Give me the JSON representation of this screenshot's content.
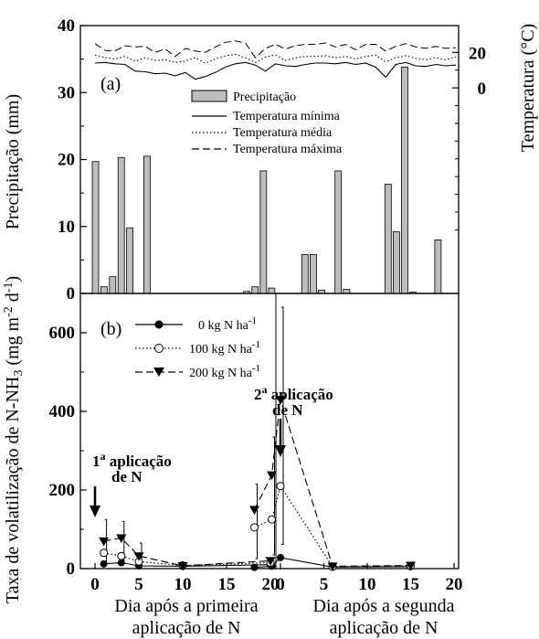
{
  "chart_data": [
    {
      "type": "bar",
      "panel_label": "(a)",
      "ylabel": "Precipitação (mm)",
      "ylim": [
        0,
        40
      ],
      "yticks": [
        "0",
        "10",
        "20",
        "30",
        "40"
      ],
      "y2label": "Temperatura (°C)",
      "y2ticks": [
        "0",
        "20"
      ],
      "legend": [
        "Precipitação",
        "Temperatura mínima",
        "Temperatura média",
        "Temperatura máxima"
      ],
      "bars_first_application": [
        {
          "day": 0,
          "mm": 19.7
        },
        {
          "day": 1,
          "mm": 1.0
        },
        {
          "day": 2,
          "mm": 2.5
        },
        {
          "day": 3,
          "mm": 20.3
        },
        {
          "day": 4,
          "mm": 9.8
        },
        {
          "day": 6,
          "mm": 20.5
        }
      ],
      "bars_second_application": [
        {
          "day": -4,
          "mm": 0.3
        },
        {
          "day": -3,
          "mm": 1.0
        },
        {
          "day": -2,
          "mm": 18.3
        },
        {
          "day": -1,
          "mm": 0.8
        },
        {
          "day": 3,
          "mm": 5.8
        },
        {
          "day": 4,
          "mm": 5.8
        },
        {
          "day": 5,
          "mm": 0.5
        },
        {
          "day": 7,
          "mm": 18.3
        },
        {
          "day": 8,
          "mm": 0.6
        },
        {
          "day": 13,
          "mm": 16.3
        },
        {
          "day": 14,
          "mm": 9.2
        },
        {
          "day": 15,
          "mm": 33.8
        },
        {
          "day": 16,
          "mm": 0.2
        },
        {
          "day": 19,
          "mm": 8.0
        }
      ],
      "temperature_lines": {
        "minima_mm_scale": [
          34.4,
          34.5,
          34.3,
          34.2,
          33.2,
          33.1,
          32.8,
          32.9,
          32.5,
          33.0,
          32.0,
          32.4,
          33.0,
          33.8,
          34.3,
          34.5,
          34.1,
          33.2,
          34.3,
          34.0,
          33.9,
          34.2,
          34.4,
          34.4,
          34.3,
          34.5,
          34.2,
          34.4,
          33.8,
          32.3,
          34.2,
          34.5,
          34.0,
          33.9,
          34.2,
          34.0,
          34.1
        ],
        "media_mm_scale": [
          35.6,
          35.2,
          35.0,
          35.4,
          34.7,
          35.2,
          34.8,
          34.9,
          34.5,
          34.7,
          35.2,
          34.4,
          35.0,
          35.5,
          35.7,
          35.2,
          34.5,
          35.3,
          35.6,
          34.8,
          35.2,
          35.4,
          35.4,
          35.5,
          35.2,
          35.4,
          35.0,
          35.4,
          35.6,
          34.6,
          35.2,
          35.5,
          35.1,
          34.9,
          35.2,
          34.9,
          35.3
        ],
        "maxima_mm_scale": [
          37.3,
          36.3,
          36.2,
          37.0,
          36.8,
          36.9,
          36.0,
          36.5,
          35.4,
          36.6,
          36.2,
          36.0,
          36.8,
          37.5,
          37.7,
          37.4,
          35.2,
          36.6,
          37.2,
          36.5,
          37.0,
          37.2,
          37.2,
          37.4,
          36.8,
          37.2,
          36.4,
          37.2,
          37.2,
          36.2,
          36.9,
          37.3,
          36.8,
          36.6,
          36.9,
          36.6,
          36.7
        ]
      }
    },
    {
      "type": "line",
      "panel_label": "(b)",
      "ylabel": "Taxa de volatilização de N-NH",
      "ylabel_sub": "3",
      "ylabel_units": " (mg m",
      "ylabel_units_sup1": "-2",
      "ylabel_units_mid": " d",
      "ylabel_units_sup2": "-1",
      "ylabel_units_end": ")",
      "ylim": [
        0,
        700
      ],
      "yticks": [
        "0",
        "200",
        "400",
        "600"
      ],
      "xticks_first": [
        "0",
        "5",
        "10",
        "15",
        "20"
      ],
      "xticks_second": [
        "0",
        "5",
        "10",
        "15",
        "20"
      ],
      "xlabel_first": [
        "Dia após a primeira",
        "aplicação de N"
      ],
      "xlabel_second": [
        "Dia após a segunda",
        "aplicação de N"
      ],
      "annotation_first": [
        "1",
        "a",
        " aplicação",
        "de N"
      ],
      "annotation_second": [
        "2",
        "a",
        " aplicação",
        "de N"
      ],
      "series": [
        {
          "name": "0 kg N ha",
          "sup": "-1",
          "marker": "filled-circle",
          "line": "solid",
          "first": [
            [
              1,
              12
            ],
            [
              3,
              15
            ],
            [
              5,
              7
            ],
            [
              10,
              6
            ],
            [
              20,
              10
            ]
          ],
          "second": [
            [
              -3,
              3
            ],
            [
              -1,
              6
            ],
            [
              0,
              28
            ],
            [
              6,
              4
            ],
            [
              15,
              5
            ]
          ]
        },
        {
          "name": "100 kg N ha",
          "sup": "-1",
          "marker": "open-circle",
          "line": "dotted",
          "first": [
            [
              1,
              40
            ],
            [
              3,
              32
            ],
            [
              5,
              18
            ],
            [
              10,
              8
            ],
            [
              20,
              15
            ]
          ],
          "second": [
            [
              -3,
              105
            ],
            [
              -1,
              125
            ],
            [
              0,
              210
            ],
            [
              6,
              5
            ],
            [
              15,
              7
            ]
          ]
        },
        {
          "name": "200 kg N ha",
          "sup": "-1",
          "marker": "filled-triangle-down",
          "line": "dashed",
          "first": [
            [
              1,
              70
            ],
            [
              3,
              78
            ],
            [
              5,
              32
            ],
            [
              10,
              7
            ],
            [
              20,
              20
            ]
          ],
          "second": [
            [
              -3,
              150
            ],
            [
              -1,
              238
            ],
            [
              0,
              430
            ],
            [
              6,
              6
            ],
            [
              15,
              8
            ]
          ]
        }
      ]
    }
  ]
}
